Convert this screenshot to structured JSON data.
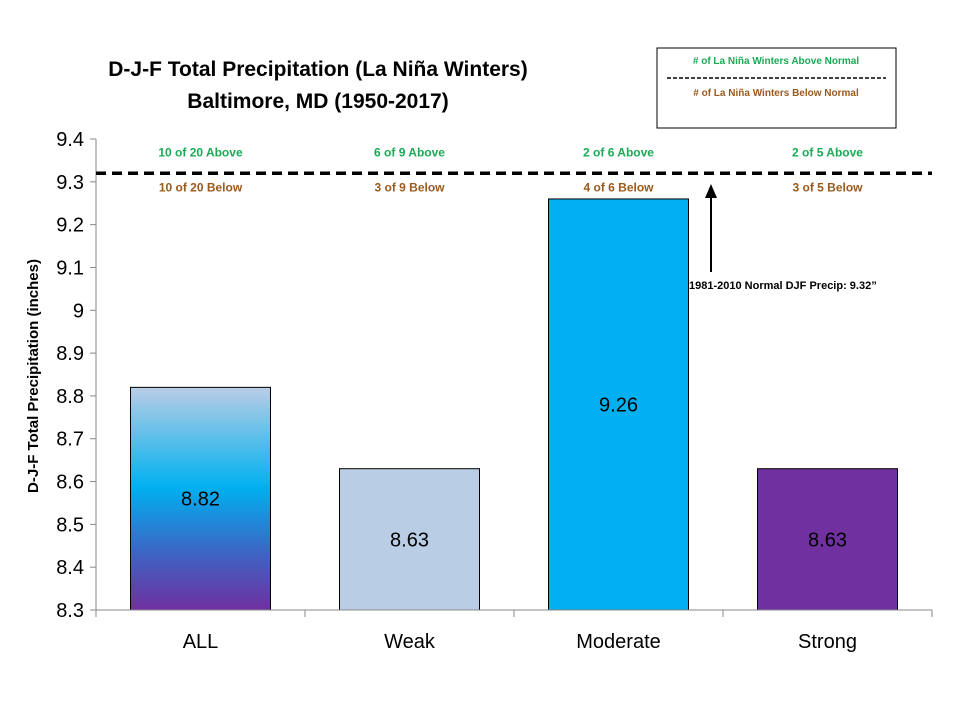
{
  "chart_data": {
    "type": "bar",
    "title_line1": "D-J-F Total  Precipitation (La Niña Winters)",
    "title_line2": "Baltimore, MD (1950-2017)",
    "ylabel": "D-J-F Total Precipitation (inches)",
    "xlabel": "",
    "ylim": [
      8.3,
      9.4
    ],
    "yticks": [
      8.3,
      8.4,
      8.5,
      8.6,
      8.7,
      8.8,
      8.9,
      9,
      9.1,
      9.2,
      9.3,
      9.4
    ],
    "yticklabels": [
      "8.3",
      "8.4",
      "8.5",
      "8.6",
      "8.7",
      "8.8",
      "8.9",
      "9",
      "9.1",
      "9.2",
      "9.3",
      "9.4"
    ],
    "categories": [
      "ALL",
      "Weak",
      "Moderate",
      "Strong"
    ],
    "values": [
      8.82,
      8.63,
      9.26,
      8.63
    ],
    "value_labels": [
      "8.82",
      "8.63",
      "9.26",
      "8.63"
    ],
    "above_labels": [
      "10 of 20 Above",
      "6 of 9 Above",
      "2 of 6 Above",
      "2 of 5 Above"
    ],
    "below_labels": [
      "10 of 20 Below",
      "3 of 9 Below",
      "4 of 6 Below",
      "3 of 5 Below"
    ],
    "normal_value": 9.32,
    "normal_label": "1981-2010  Normal DJF Precip: 9.32”",
    "legend": {
      "above": "# of La Niña Winters Above Normal",
      "below": "# of La Niña Winters Below Normal",
      "placement": "top-right"
    },
    "grid": false,
    "colors": {
      "bar_weak": "#b9cde5",
      "bar_moderate": "#00b0f0",
      "bar_strong": "#7030a0",
      "gradient_all": [
        "#b9cde5",
        "#00b0f0",
        "#3e63c3",
        "#7030a0"
      ],
      "above_text": "#1aaa55",
      "below_text": "#9a5a1e"
    }
  }
}
